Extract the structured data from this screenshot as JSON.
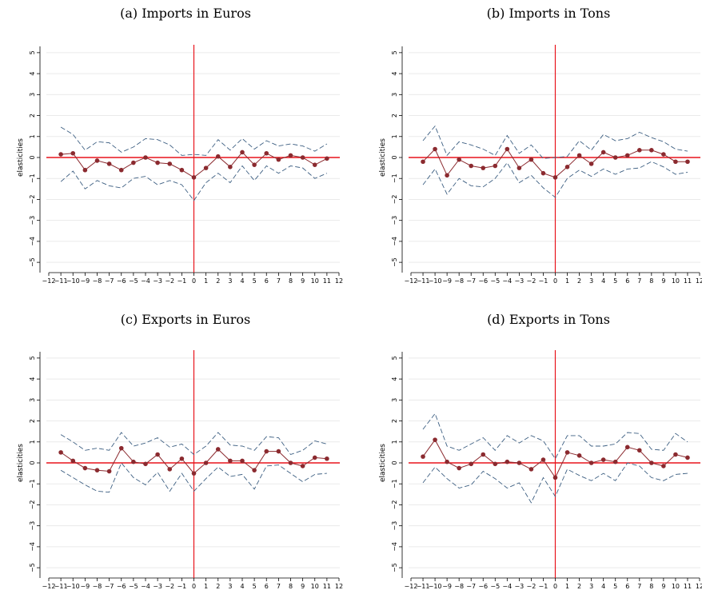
{
  "chart_data": [
    {
      "type": "line",
      "title": "(a) Imports in Euros",
      "xlabel": "",
      "ylabel": "elasticities",
      "x_ticks": [
        -12,
        -11,
        -10,
        -9,
        -8,
        -7,
        -6,
        -5,
        -4,
        -3,
        -2,
        -1,
        0,
        1,
        2,
        3,
        4,
        5,
        6,
        7,
        8,
        9,
        10,
        11,
        12
      ],
      "y_ticks": [
        -5,
        -4,
        -3,
        -2,
        -1,
        0,
        1,
        2,
        3,
        4,
        5
      ],
      "xlim": [
        -12,
        12
      ],
      "ylim": [
        -5.3,
        5.3
      ],
      "x": [
        -11,
        -10,
        -9,
        -8,
        -7,
        -6,
        -5,
        -4,
        -3,
        -2,
        -1,
        0,
        1,
        2,
        3,
        4,
        5,
        6,
        7,
        8,
        9,
        10,
        11
      ],
      "series": [
        {
          "role": "estimate",
          "values": [
            0.15,
            0.2,
            -0.6,
            -0.15,
            -0.3,
            -0.6,
            -0.25,
            0.0,
            -0.25,
            -0.3,
            -0.6,
            -0.95,
            -0.5,
            0.05,
            -0.45,
            0.25,
            -0.35,
            0.2,
            -0.1,
            0.1,
            0.0,
            -0.35,
            -0.05
          ]
        },
        {
          "role": "upper",
          "values": [
            1.45,
            1.1,
            0.35,
            0.75,
            0.7,
            0.25,
            0.5,
            0.9,
            0.85,
            0.6,
            0.1,
            0.15,
            0.1,
            0.85,
            0.35,
            0.9,
            0.4,
            0.8,
            0.55,
            0.65,
            0.55,
            0.3,
            0.65
          ]
        },
        {
          "role": "lower",
          "values": [
            -1.15,
            -0.65,
            -1.5,
            -1.1,
            -1.35,
            -1.45,
            -1.0,
            -0.9,
            -1.3,
            -1.1,
            -1.3,
            -2.05,
            -1.2,
            -0.75,
            -1.2,
            -0.4,
            -1.1,
            -0.4,
            -0.75,
            -0.4,
            -0.5,
            -1.0,
            -0.75
          ]
        }
      ],
      "reference_lines": {
        "vertical_x": 0,
        "horizontal_y": 0
      },
      "grid": true,
      "colors": {
        "estimate": "#8b2a2f",
        "bands": "#3d5f82",
        "reference": "#e8141c",
        "grid": "#eaeaea"
      }
    },
    {
      "type": "line",
      "title": "(b) Imports in Tons",
      "xlabel": "",
      "ylabel": "elasticities",
      "x_ticks": [
        -12,
        -11,
        -10,
        -9,
        -8,
        -7,
        -6,
        -5,
        -4,
        -3,
        -2,
        -1,
        0,
        1,
        2,
        3,
        4,
        5,
        6,
        7,
        8,
        9,
        10,
        11,
        12
      ],
      "y_ticks": [
        -5,
        -4,
        -3,
        -2,
        -1,
        0,
        1,
        2,
        3,
        4,
        5
      ],
      "xlim": [
        -12,
        12
      ],
      "ylim": [
        -5.3,
        5.3
      ],
      "x": [
        -11,
        -10,
        -9,
        -8,
        -7,
        -6,
        -5,
        -4,
        -3,
        -2,
        -1,
        0,
        1,
        2,
        3,
        4,
        5,
        6,
        7,
        8,
        9,
        10,
        11
      ],
      "series": [
        {
          "role": "estimate",
          "values": [
            -0.2,
            0.4,
            -0.85,
            -0.1,
            -0.4,
            -0.5,
            -0.4,
            0.4,
            -0.5,
            -0.1,
            -0.75,
            -0.95,
            -0.45,
            0.1,
            -0.3,
            0.25,
            0.0,
            0.1,
            0.35,
            0.35,
            0.15,
            -0.2,
            -0.2
          ]
        },
        {
          "role": "upper",
          "values": [
            0.8,
            1.5,
            0.1,
            0.75,
            0.6,
            0.4,
            0.1,
            1.05,
            0.2,
            0.6,
            -0.05,
            0.0,
            0.05,
            0.8,
            0.35,
            1.1,
            0.8,
            0.9,
            1.2,
            0.95,
            0.75,
            0.4,
            0.3
          ]
        },
        {
          "role": "lower",
          "values": [
            -1.3,
            -0.55,
            -1.75,
            -1.0,
            -1.35,
            -1.4,
            -1.0,
            -0.25,
            -1.2,
            -0.85,
            -1.45,
            -1.9,
            -1.0,
            -0.6,
            -0.9,
            -0.55,
            -0.8,
            -0.55,
            -0.5,
            -0.2,
            -0.45,
            -0.8,
            -0.7
          ]
        }
      ],
      "reference_lines": {
        "vertical_x": 0,
        "horizontal_y": 0
      },
      "grid": true,
      "colors": {
        "estimate": "#8b2a2f",
        "bands": "#3d5f82",
        "reference": "#e8141c",
        "grid": "#eaeaea"
      }
    },
    {
      "type": "line",
      "title": "(c) Exports in Euros",
      "xlabel": "",
      "ylabel": "elasticities",
      "x_ticks": [
        -12,
        -11,
        -10,
        -9,
        -8,
        -7,
        -6,
        -5,
        -4,
        -3,
        -2,
        -1,
        0,
        1,
        2,
        3,
        4,
        5,
        6,
        7,
        8,
        9,
        10,
        11,
        12
      ],
      "y_ticks": [
        -5,
        -4,
        -3,
        -2,
        -1,
        0,
        1,
        2,
        3,
        4,
        5
      ],
      "xlim": [
        -12,
        12
      ],
      "ylim": [
        -5.3,
        5.3
      ],
      "x": [
        -11,
        -10,
        -9,
        -8,
        -7,
        -6,
        -5,
        -4,
        -3,
        -2,
        -1,
        0,
        1,
        2,
        3,
        4,
        5,
        6,
        7,
        8,
        9,
        10,
        11
      ],
      "series": [
        {
          "role": "estimate",
          "values": [
            0.5,
            0.1,
            -0.25,
            -0.35,
            -0.4,
            0.7,
            0.05,
            -0.05,
            0.4,
            -0.3,
            0.2,
            -0.5,
            0.0,
            0.65,
            0.1,
            0.1,
            -0.35,
            0.55,
            0.55,
            0.0,
            -0.15,
            0.25,
            0.2
          ]
        },
        {
          "role": "upper",
          "values": [
            1.35,
            1.0,
            0.6,
            0.7,
            0.6,
            1.45,
            0.8,
            0.95,
            1.2,
            0.75,
            0.9,
            0.4,
            0.8,
            1.45,
            0.85,
            0.8,
            0.6,
            1.25,
            1.2,
            0.4,
            0.6,
            1.05,
            0.9
          ]
        },
        {
          "role": "lower",
          "values": [
            -0.35,
            -0.7,
            -1.05,
            -1.35,
            -1.4,
            0.0,
            -0.7,
            -1.05,
            -0.45,
            -1.35,
            -0.5,
            -1.35,
            -0.75,
            -0.2,
            -0.65,
            -0.55,
            -1.25,
            -0.15,
            -0.1,
            -0.5,
            -0.9,
            -0.55,
            -0.5
          ]
        }
      ],
      "reference_lines": {
        "vertical_x": 0,
        "horizontal_y": 0
      },
      "grid": true,
      "colors": {
        "estimate": "#8b2a2f",
        "bands": "#3d5f82",
        "reference": "#e8141c",
        "grid": "#eaeaea"
      }
    },
    {
      "type": "line",
      "title": "(d) Exports in Tons",
      "xlabel": "",
      "ylabel": "elasticities",
      "x_ticks": [
        -12,
        -11,
        -10,
        -9,
        -8,
        -7,
        -6,
        -5,
        -4,
        -3,
        -2,
        -1,
        0,
        1,
        2,
        3,
        4,
        5,
        6,
        7,
        8,
        9,
        10,
        11,
        12
      ],
      "y_ticks": [
        -5,
        -4,
        -3,
        -2,
        -1,
        0,
        1,
        2,
        3,
        4,
        5
      ],
      "xlim": [
        -12,
        12
      ],
      "ylim": [
        -5.3,
        5.3
      ],
      "x": [
        -11,
        -10,
        -9,
        -8,
        -7,
        -6,
        -5,
        -4,
        -3,
        -2,
        -1,
        0,
        1,
        2,
        3,
        4,
        5,
        6,
        7,
        8,
        9,
        10,
        11
      ],
      "series": [
        {
          "role": "estimate",
          "values": [
            0.3,
            1.1,
            0.05,
            -0.25,
            -0.05,
            0.4,
            -0.05,
            0.05,
            0.0,
            -0.3,
            0.15,
            -0.7,
            0.5,
            0.35,
            0.0,
            0.15,
            0.05,
            0.75,
            0.6,
            0.0,
            -0.15,
            0.4,
            0.25
          ]
        },
        {
          "role": "upper",
          "values": [
            1.6,
            2.35,
            0.8,
            0.6,
            0.9,
            1.2,
            0.6,
            1.3,
            0.95,
            1.3,
            1.05,
            0.2,
            1.3,
            1.3,
            0.8,
            0.8,
            0.9,
            1.45,
            1.4,
            0.65,
            0.6,
            1.4,
            1.0
          ]
        },
        {
          "role": "lower",
          "values": [
            -0.95,
            -0.2,
            -0.75,
            -1.2,
            -1.05,
            -0.4,
            -0.75,
            -1.2,
            -0.95,
            -1.9,
            -0.7,
            -1.6,
            -0.3,
            -0.6,
            -0.85,
            -0.5,
            -0.85,
            0.0,
            -0.15,
            -0.7,
            -0.85,
            -0.55,
            -0.5
          ]
        }
      ],
      "reference_lines": {
        "vertical_x": 0,
        "horizontal_y": 0
      },
      "grid": true,
      "colors": {
        "estimate": "#8b2a2f",
        "bands": "#3d5f82",
        "reference": "#e8141c",
        "grid": "#eaeaea"
      }
    }
  ]
}
